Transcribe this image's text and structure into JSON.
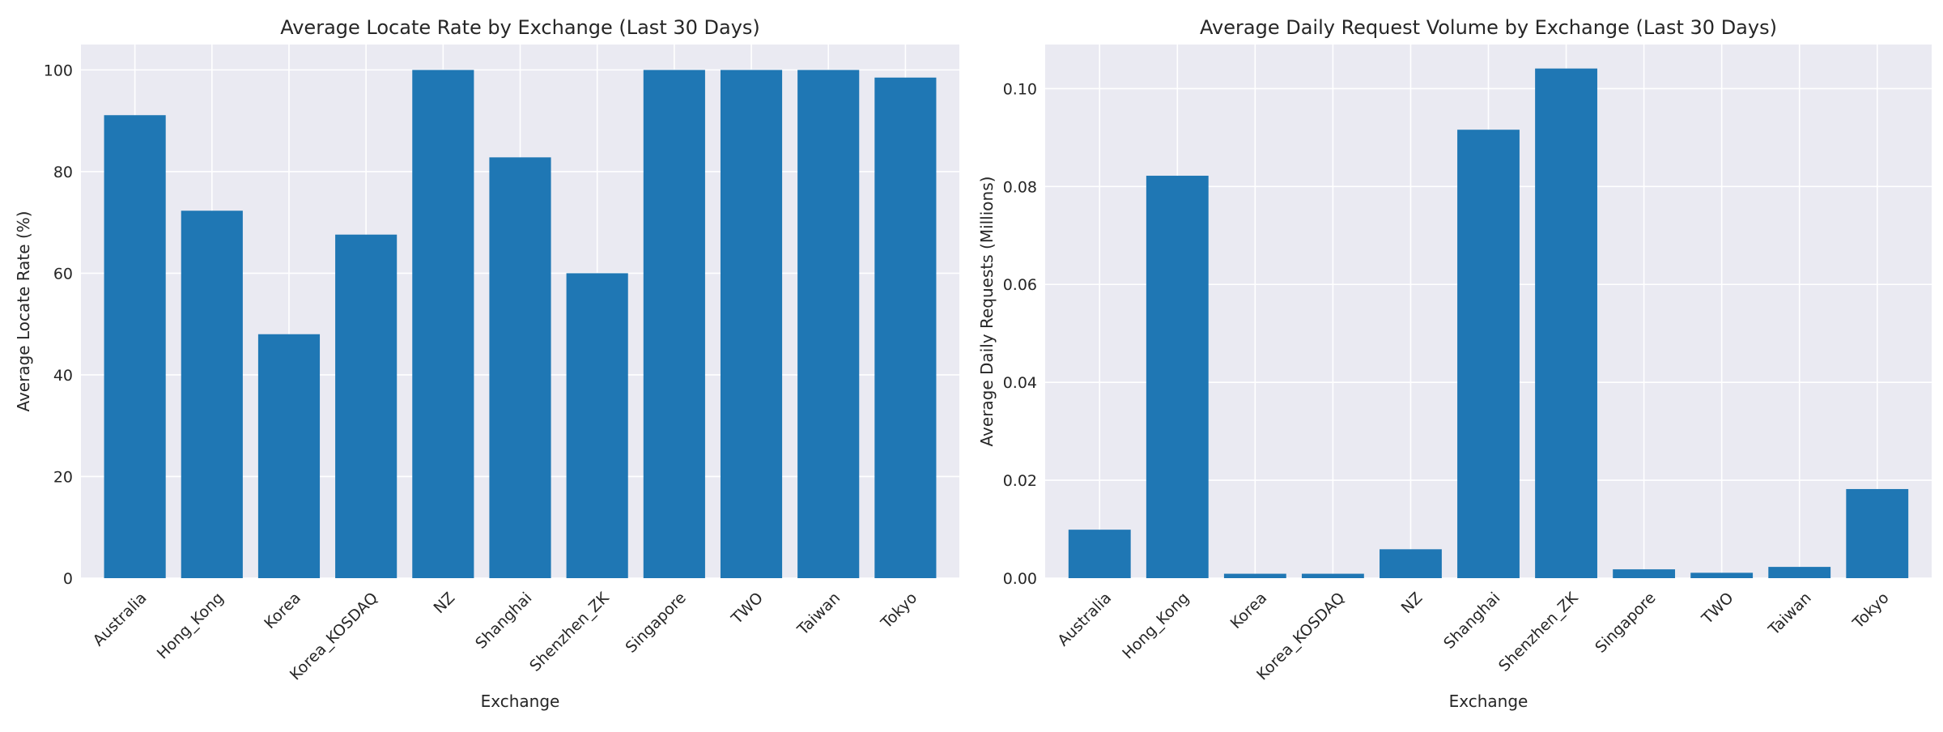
{
  "chart_data": [
    {
      "type": "bar",
      "title": "Average Locate Rate by Exchange (Last 30 Days)",
      "xlabel": "Exchange",
      "ylabel": "Average Locate Rate (%)",
      "categories": [
        "Australia",
        "Hong_Kong",
        "Korea",
        "Korea_KOSDAQ",
        "NZ",
        "Shanghai",
        "Shenzhen_ZK",
        "Singapore",
        "TWO",
        "Taiwan",
        "Tokyo"
      ],
      "values": [
        91.1,
        72.3,
        48.0,
        67.6,
        100.0,
        82.8,
        60.0,
        100.0,
        100.0,
        100.0,
        98.5
      ],
      "ylim": [
        0,
        105
      ],
      "yticks": [
        0,
        20,
        40,
        60,
        80,
        100
      ],
      "ytick_labels": [
        "0",
        "20",
        "40",
        "60",
        "80",
        "100"
      ],
      "grid": true,
      "bar_color": "#1f77b4",
      "background_color": "#eaeaf2"
    },
    {
      "type": "bar",
      "title": "Average Daily Request Volume by Exchange (Last 30 Days)",
      "xlabel": "Exchange",
      "ylabel": "Average Daily Requests (Millions)",
      "categories": [
        "Australia",
        "Hong_Kong",
        "Korea",
        "Korea_KOSDAQ",
        "NZ",
        "Shanghai",
        "Shenzhen_ZK",
        "Singapore",
        "TWO",
        "Taiwan",
        "Tokyo"
      ],
      "values": [
        0.0099,
        0.0822,
        0.0009,
        0.0009,
        0.0059,
        0.0916,
        0.1041,
        0.0018,
        0.0011,
        0.0023,
        0.0182
      ],
      "ylim": [
        0,
        0.109
      ],
      "yticks": [
        0,
        0.02,
        0.04,
        0.06,
        0.08,
        0.1
      ],
      "ytick_labels": [
        "0.00",
        "0.02",
        "0.04",
        "0.06",
        "0.08",
        "0.10"
      ],
      "grid": true,
      "bar_color": "#1f77b4",
      "background_color": "#eaeaf2"
    }
  ]
}
